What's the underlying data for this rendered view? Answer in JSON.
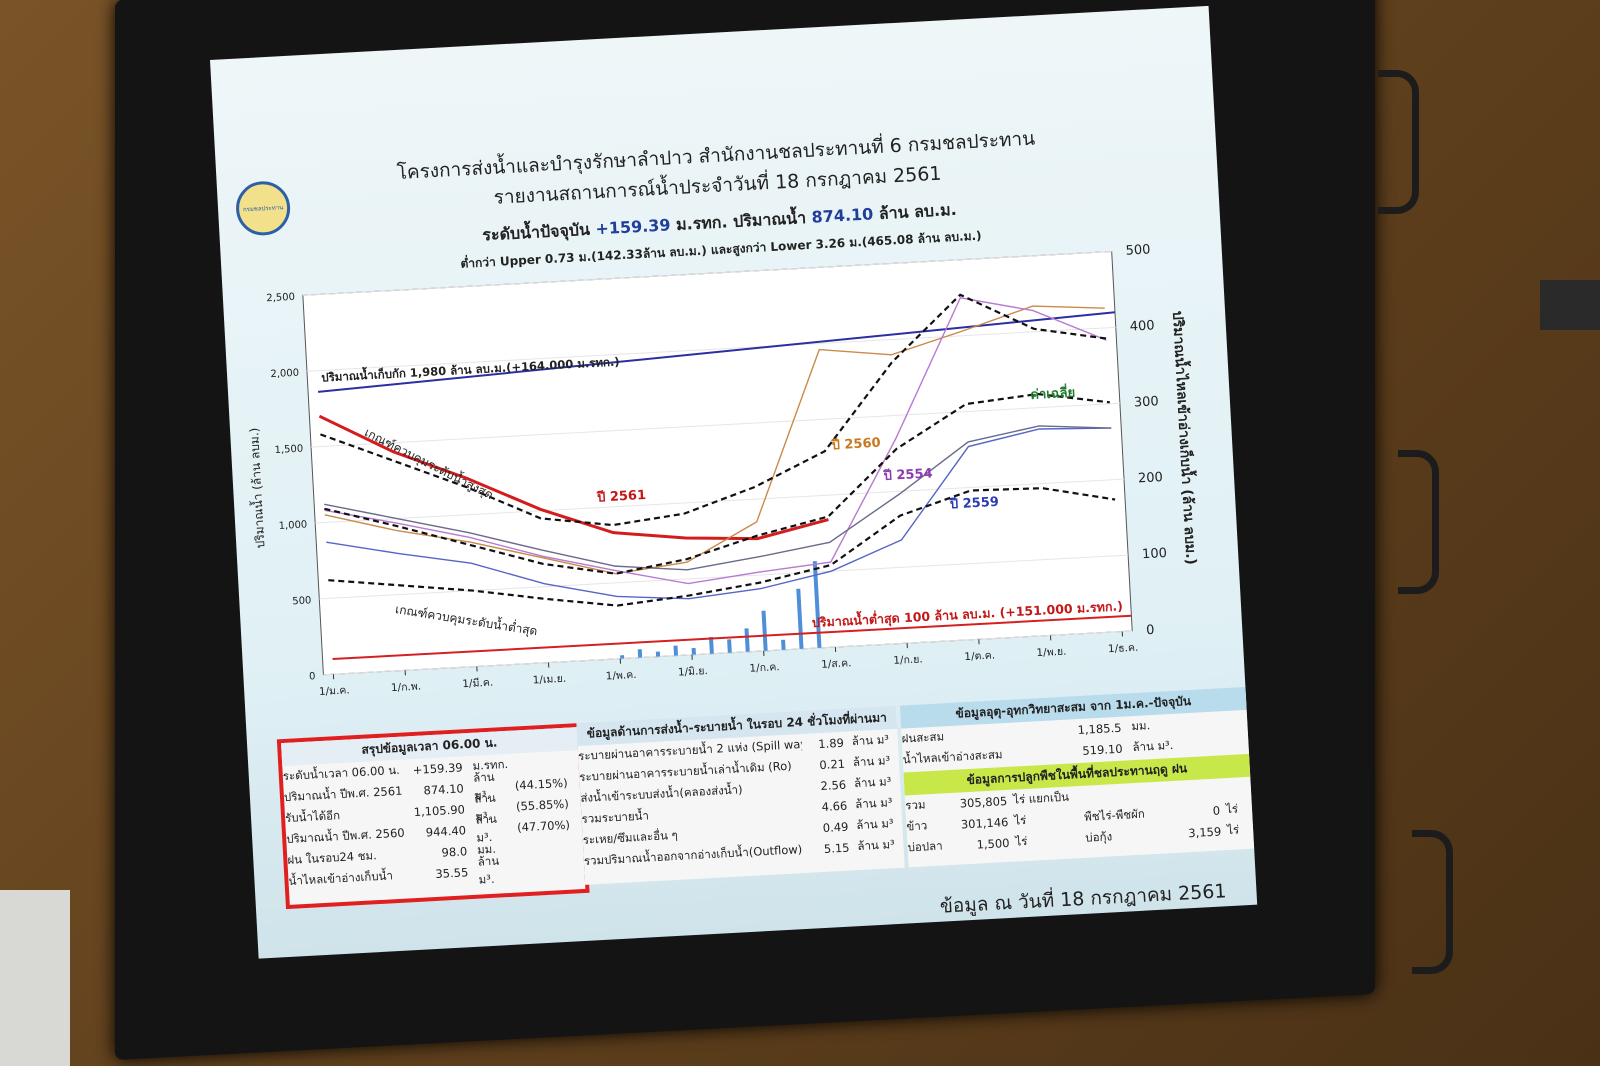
{
  "header": {
    "line1": "โครงการส่งน้ำและบำรุงรักษาลำปาว สำนักงานชลประทานที่ 6 กรมชลประทาน",
    "line2": "รายงานสถานการณ์น้ำประจำวันที่ 18 กรกฎาคม 2561",
    "logo_text": "กรมชลประทาน"
  },
  "current": {
    "level_label": "ระดับน้ำปัจจุบัน",
    "level_value": "+159.39",
    "level_unit": "ม.รทก. ปริมาณน้ำ",
    "volume_value": "874.10",
    "volume_unit": "ล้าน ลบ.ม.",
    "diff_text": "ต่ำกว่า Upper 0.73 ม.(142.33ล้าน ลบ.ม.) และสูงกว่า Lower 3.26 ม.(465.08 ล้าน ลบ.ม.)"
  },
  "chart_data": {
    "type": "line",
    "x": [
      "1/ม.ค.",
      "1/ก.พ.",
      "1/มี.ค.",
      "1/เม.ย.",
      "1/พ.ค.",
      "1/มิ.ย.",
      "1/ก.ค.",
      "1/ส.ค.",
      "1/ก.ย.",
      "1/ต.ค.",
      "1/พ.ย.",
      "1/ธ.ค."
    ],
    "ylabel": "ปริมาณน้ำ (ล้าน ลบม.)",
    "y2label": "ปริมาณน้ำไหลเข้าอ่างเก็บน้ำ (ล้าน ลบม.)",
    "ylim": [
      0,
      2500
    ],
    "y2lim": [
      0,
      500
    ],
    "yticks": [
      "0",
      "500",
      "1,000",
      "1,500",
      "2,000",
      "2,500"
    ],
    "y2ticks": [
      "0",
      "100",
      "200",
      "300",
      "400",
      "500"
    ],
    "capacity_line": {
      "value": 1980,
      "label": "ปริมาณน้ำเก็บกัก 1,980 ล้าน ลบ.ม.(+164.000 ม.รทก.)",
      "color": "#2b2fa0"
    },
    "min_line": {
      "value": 100,
      "label": "ปริมาณน้ำต่ำสุด 100 ล้าน ลบ.ม. (+151.000 ม.รทก.)",
      "color": "#d42020"
    },
    "series": [
      {
        "name": "ปี 2561",
        "color": "#d41c1c",
        "values": [
          1700,
          1440,
          1240,
          1010,
          830,
          770,
          740,
          840,
          null,
          null,
          null,
          null
        ]
      },
      {
        "name": "ปี 2560",
        "color": "#c98a4a",
        "values": [
          1050,
          920,
          820,
          690,
          560,
          610,
          850,
          1960,
          1900,
          2030,
          2170,
          2130
        ]
      },
      {
        "name": "ปี 2554",
        "color": "#b77ad0",
        "values": [
          1080,
          970,
          850,
          700,
          580,
          470,
          520,
          560,
          1350,
          2250,
          2140,
          1920
        ]
      },
      {
        "name": "ปี 2559",
        "color": "#5566c8",
        "values": [
          870,
          770,
          680,
          520,
          410,
          370,
          410,
          500,
          680,
          1270,
          1360,
          1340
        ]
      },
      {
        "name": "ค่าเฉลี่ย",
        "color": "#6a6a8a",
        "values": [
          1120,
          1000,
          880,
          740,
          610,
          560,
          620,
          690,
          980,
          1300,
          1380,
          1340
        ]
      },
      {
        "name": "เกณฑ์ควบคุมระดับน้ำสูงสุด",
        "color": "#111111",
        "dashed": true,
        "values": [
          1580,
          1380,
          1180,
          950,
          880,
          930,
          1080,
          1290,
          1850,
          2270,
          2020,
          1930
        ]
      },
      {
        "name": "เกณฑ์ควบคุมระดับน้ำต่ำสุด",
        "color": "#111111",
        "dashed": true,
        "values": [
          620,
          560,
          500,
          420,
          350,
          390,
          450,
          540,
          840,
          980,
          970,
          870
        ]
      },
      {
        "name": "ค่าเฉลี่ย (เส้นประ)",
        "color": "#111111",
        "dashed": true,
        "values": [
          1090,
          950,
          800,
          650,
          560,
          630,
          760,
          860,
          1280,
          1550,
          1590,
          1510
        ]
      }
    ],
    "labels": {
      "upper_rule": "เกณฑ์ควบคุมระดับน้ำสูงสุด",
      "lower_rule": "เกณฑ์ควบคุมระดับน้ำต่ำสุด",
      "y2561": "ปี 2561",
      "y2560": "ปี 2560",
      "y2554": "ปี 2554",
      "y2559": "ปี 2559",
      "avg": "ค่าเฉลี่ย"
    },
    "rain_bars": [
      2,
      5,
      3,
      6,
      4,
      10,
      8,
      14,
      24,
      6,
      36,
      52
    ]
  },
  "summary": {
    "title": "สรุปข้อมูลเวลา 06.00 น.",
    "rows": [
      {
        "label": "ระดับน้ำเวลา 06.00 น.",
        "value": "+159.39",
        "unit": "ม.รทก.",
        "pct": ""
      },
      {
        "label": "ปริมาณน้ำ ปีพ.ศ. 2561",
        "value": "874.10",
        "unit": "ล้าน ม³.",
        "pct": "(44.15%)"
      },
      {
        "label": "รับน้ำได้อีก",
        "value": "1,105.90",
        "unit": "ล้าน ม³.",
        "pct": "(55.85%)"
      },
      {
        "label": "ปริมาณน้ำ ปีพ.ศ. 2560",
        "value": "944.40",
        "unit": "ล้าน ม³.",
        "pct": "(47.70%)"
      },
      {
        "label": "ฝน ในรอบ24 ชม.",
        "value": "98.0",
        "unit": "มม.",
        "pct": ""
      },
      {
        "label": "น้ำไหลเข้าอ่างเก็บน้ำ",
        "value": "35.55",
        "unit": "ล้าน ม³.",
        "pct": ""
      }
    ]
  },
  "release": {
    "title": "ข้อมูลด้านการส่งน้ำ-ระบายน้ำ ในรอบ 24 ชั่วโมงที่ผ่านมา",
    "rows": [
      {
        "label": "ระบายผ่านอาคารระบายน้ำ 2 แห่ง (Spill way)",
        "value": "1.89",
        "unit": "ล้าน ม³"
      },
      {
        "label": "ระบายผ่านอาคารระบายน้ำเล่าน้ำเดิม (Ro)",
        "value": "0.21",
        "unit": "ล้าน ม³"
      },
      {
        "label": "ส่งน้ำเข้าระบบส่งน้ำ(คลองส่งน้ำ)",
        "value": "2.56",
        "unit": "ล้าน ม³"
      },
      {
        "label": "รวมระบายน้ำ",
        "value": "4.66",
        "unit": "ล้าน ม³"
      },
      {
        "label": "ระเหย/ซึมและอื่น ๆ",
        "value": "0.49",
        "unit": "ล้าน ม³"
      },
      {
        "label": "รวมปริมาณน้ำออกจากอ่างเก็บน้ำ(Outflow)",
        "value": "5.15",
        "unit": "ล้าน ม³"
      }
    ]
  },
  "hydro": {
    "title": "ข้อมูลอุตุ-อุทกวิทยาสะสม จาก 1ม.ค.-ปัจจุบัน",
    "rows": [
      {
        "label": "ฝนสะสม",
        "value": "1,185.5",
        "unit": "มม."
      },
      {
        "label": "น้ำไหลเข้าอ่างสะสม",
        "value": "519.10",
        "unit": "ล้าน ม³."
      }
    ],
    "crop_title": "ข้อมูลการปลูกพืชในพื้นที่ชลประทานฤดู ฝน",
    "crop_rows": [
      {
        "label": "รวม",
        "value": "305,805",
        "unit": "ไร่ แยกเป็น",
        "label2": "",
        "value2": "",
        "unit2": ""
      },
      {
        "label": "ข้าว",
        "value": "301,146",
        "unit": "ไร่",
        "label2": "พืชไร่-พืชผัก",
        "value2": "0",
        "unit2": "ไร่"
      },
      {
        "label": "บ่อปลา",
        "value": "1,500",
        "unit": "ไร่",
        "label2": "บ่อกุ้ง",
        "value2": "3,159",
        "unit2": "ไร่"
      }
    ]
  },
  "footer": "ข้อมูล ณ วันที่ 18 กรกฎาคม 2561"
}
